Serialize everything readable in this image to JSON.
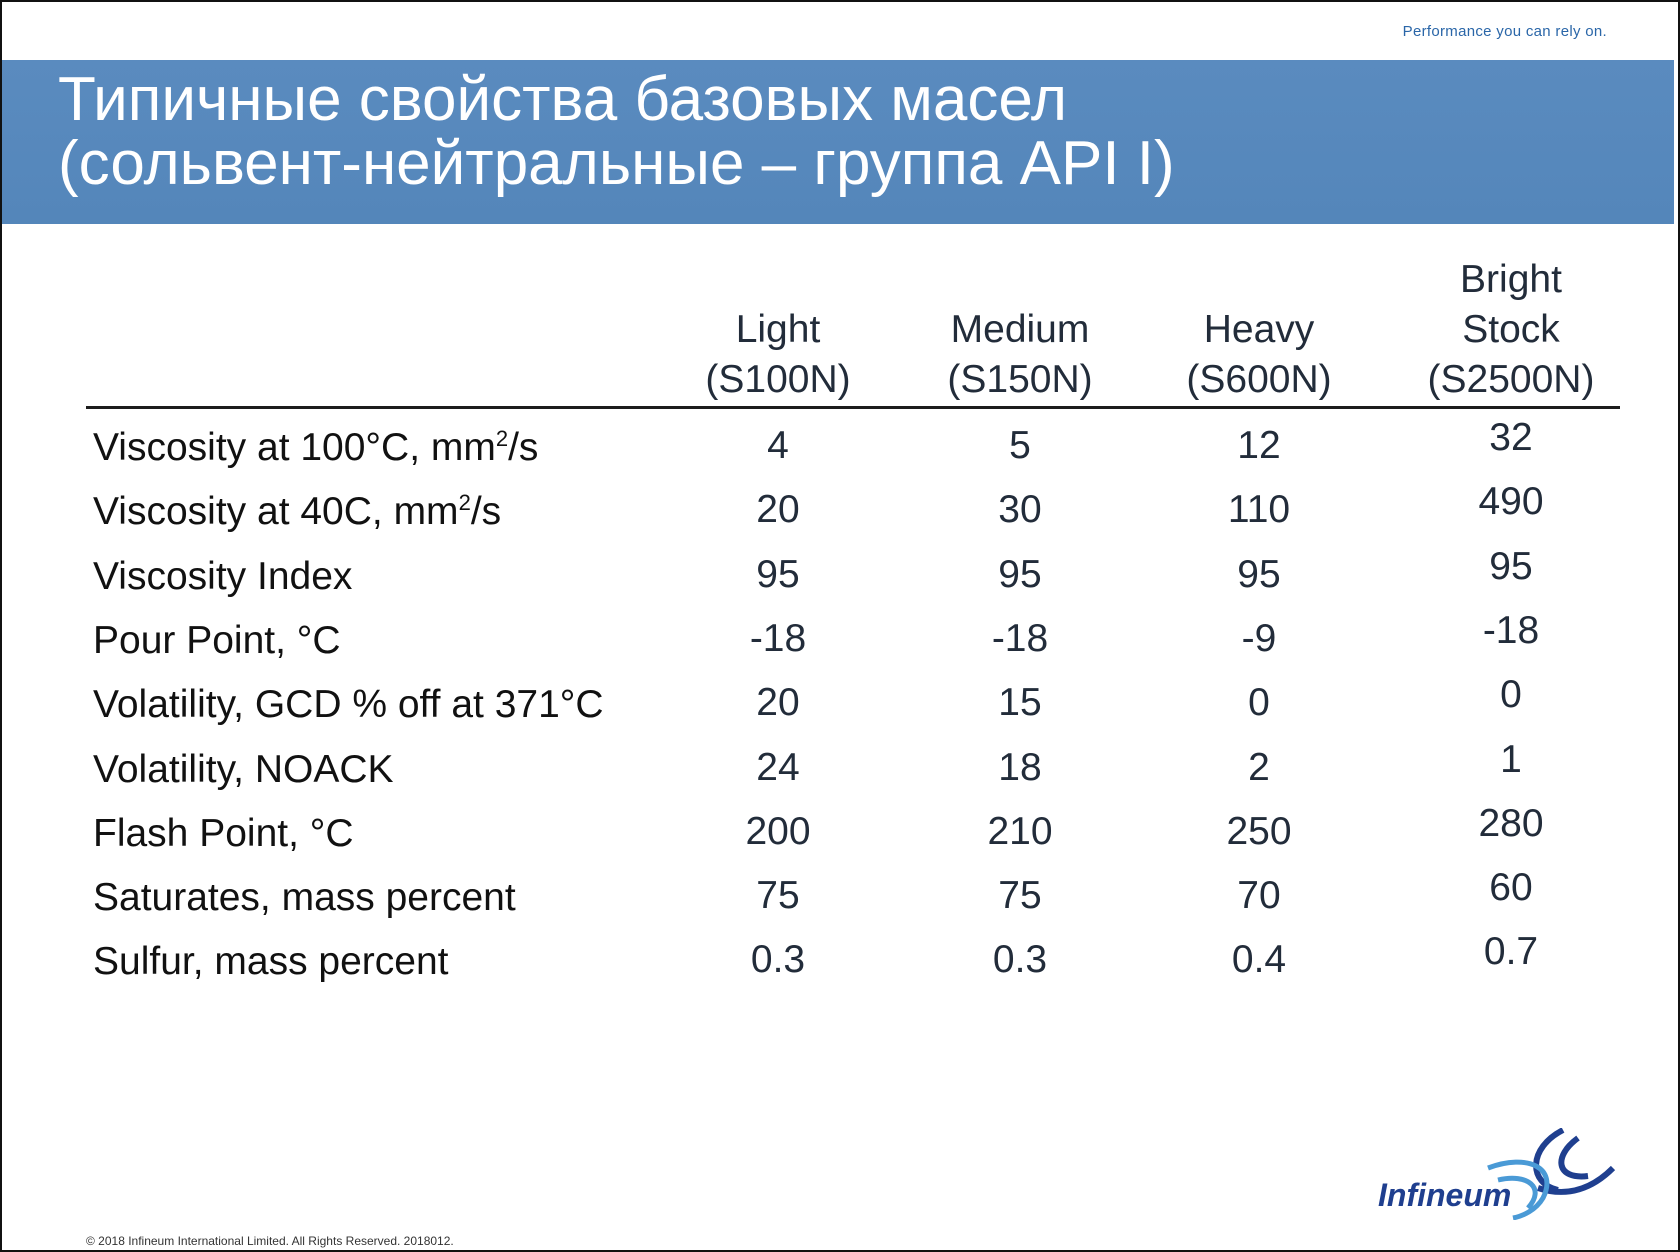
{
  "tagline": "Performance you can rely on.",
  "title": {
    "line1": "Типичные свойства базовых масел",
    "line2": "(сольвент-нейтральные – группа API I)"
  },
  "table": {
    "columns": [
      {
        "lines": [
          "Light",
          "(S100N)"
        ]
      },
      {
        "lines": [
          "Medium",
          "(S150N)"
        ]
      },
      {
        "lines": [
          "Heavy",
          "(S600N)"
        ]
      },
      {
        "lines": [
          "Bright",
          "Stock",
          "(S2500N)"
        ]
      }
    ],
    "rows": [
      {
        "label": "Viscosity at 100°C, mm",
        "sup": "2",
        "suffix": "/s",
        "values": [
          "4",
          "5",
          "12",
          "32"
        ]
      },
      {
        "label": "Viscosity at 40C, mm",
        "sup": "2",
        "suffix": "/s",
        "values": [
          "20",
          "30",
          "110",
          "490"
        ]
      },
      {
        "label": "Viscosity Index",
        "values": [
          "95",
          "95",
          "95",
          "95"
        ]
      },
      {
        "label": "Pour Point, °C",
        "values": [
          "-18",
          "-18",
          "-9",
          "-18"
        ]
      },
      {
        "label": "Volatility, GCD % off at 371°C",
        "values": [
          "20",
          "15",
          "0",
          "0"
        ]
      },
      {
        "label": "Volatility, NOACK",
        "values": [
          "24",
          "18",
          "2",
          "1"
        ]
      },
      {
        "label": "Flash Point, °C",
        "values": [
          "200",
          "210",
          "250",
          "280"
        ]
      },
      {
        "label": "Saturates, mass percent",
        "values": [
          "75",
          "75",
          "70",
          "60"
        ]
      },
      {
        "label": "Sulfur, mass percent",
        "values": [
          "0.3",
          "0.3",
          "0.4",
          "0.7"
        ]
      }
    ]
  },
  "logo": {
    "text": "Infineum"
  },
  "footer": "© 2018 Infineum International Limited. All Rights Reserved. 2018012.",
  "colors": {
    "band": "#5a8bbf",
    "logo_dark": "#1f3f8f",
    "logo_light": "#4a9ad6"
  }
}
